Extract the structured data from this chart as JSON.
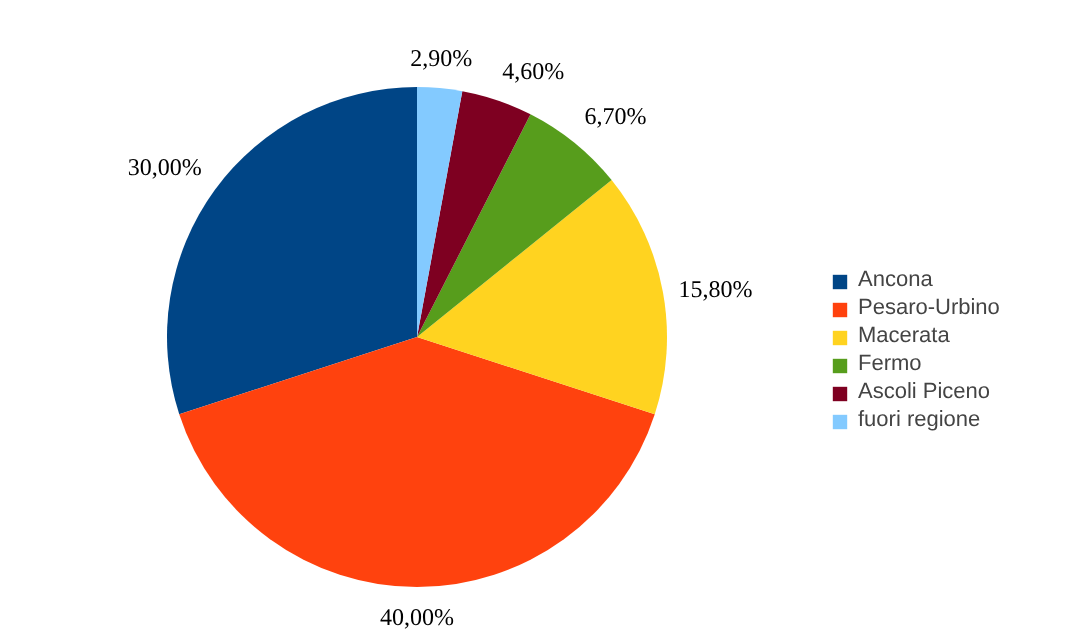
{
  "chart_data": {
    "type": "pie",
    "categories": [
      "Ancona",
      "Pesaro-Urbino",
      "Macerata",
      "Fermo",
      "Ascoli Piceno",
      "fuori regione"
    ],
    "values": [
      30,
      40,
      15.8,
      6.7,
      4.6,
      2.9
    ],
    "colors": [
      "#004586",
      "#ff420e",
      "#ffd320",
      "#579d1c",
      "#7e0021",
      "#83caff"
    ],
    "value_labels": [
      "30,00%",
      "40,00%",
      "15,80%",
      "6,70%",
      "4,60%",
      "2,90%"
    ],
    "legend": "right"
  }
}
